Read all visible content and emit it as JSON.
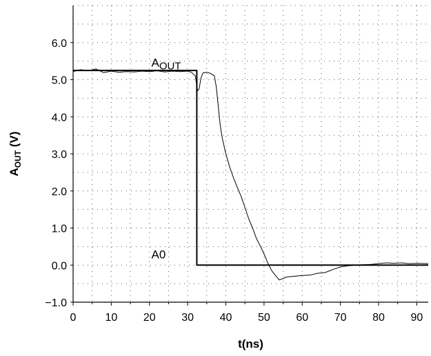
{
  "chart_data": {
    "type": "line",
    "title": "",
    "xlabel": "t(ns)",
    "ylabel": {
      "main": "A",
      "sub": "OUT",
      "unit": " (V)"
    },
    "xlim": [
      0,
      93
    ],
    "ylim": [
      -1.0,
      7.0
    ],
    "x_ticks": [
      0,
      10,
      20,
      30,
      40,
      50,
      60,
      70,
      80,
      90
    ],
    "x_tick_labels": [
      "0",
      "10",
      "20",
      "30",
      "40",
      "50",
      "60",
      "70",
      "80",
      "90"
    ],
    "y_ticks": [
      -1.0,
      0.0,
      1.0,
      2.0,
      3.0,
      4.0,
      5.0,
      6.0
    ],
    "y_tick_labels": [
      "−1.0",
      "0.0",
      "1.0",
      "2.0",
      "3.0",
      "4.0",
      "5.0",
      "6.0"
    ],
    "grid": true,
    "grid_style": "dotted",
    "annotations": [
      {
        "text": "A",
        "sub": "OUT",
        "x": 20.5,
        "y": 5.35
      },
      {
        "text": "A0",
        "x": 20.5,
        "y": 0.18
      }
    ],
    "series": [
      {
        "x": [
          0,
          5,
          10,
          15,
          20,
          25,
          30,
          32.4,
          32.4,
          40,
          50,
          60,
          70,
          80,
          93
        ],
        "y": [
          5.25,
          5.25,
          5.25,
          5.25,
          5.25,
          5.25,
          5.25,
          5.25,
          0.0,
          0.0,
          0.0,
          0.0,
          0.0,
          0.0,
          0.0
        ]
      },
      {
        "x": [
          0,
          2,
          4,
          6,
          8,
          10,
          12,
          14,
          16,
          18,
          20,
          22,
          24,
          26,
          28,
          30,
          31,
          32,
          32.6,
          33,
          33.5,
          34,
          35,
          36,
          37,
          37.5,
          38,
          38.5,
          39,
          40,
          41,
          42,
          43,
          44,
          45,
          46,
          47,
          48,
          49,
          50,
          51,
          52,
          53,
          54,
          55,
          56,
          58,
          60,
          62,
          64,
          66,
          68,
          70,
          72,
          74,
          76,
          78,
          80,
          82,
          84,
          86,
          88,
          90,
          93
        ],
        "y": [
          5.22,
          5.27,
          5.24,
          5.29,
          5.19,
          5.23,
          5.2,
          5.22,
          5.21,
          5.23,
          5.22,
          5.24,
          5.21,
          5.23,
          5.22,
          5.23,
          5.2,
          5.1,
          4.7,
          4.75,
          5.05,
          5.18,
          5.2,
          5.17,
          5.1,
          4.8,
          4.3,
          3.8,
          3.45,
          3.0,
          2.65,
          2.35,
          2.1,
          1.85,
          1.55,
          1.25,
          1.0,
          0.72,
          0.52,
          0.3,
          0.05,
          -0.15,
          -0.28,
          -0.4,
          -0.36,
          -0.32,
          -0.3,
          -0.28,
          -0.27,
          -0.22,
          -0.2,
          -0.12,
          -0.05,
          -0.02,
          0.0,
          0.01,
          0.02,
          0.04,
          0.06,
          0.05,
          0.06,
          0.04,
          0.05,
          0.04
        ]
      }
    ]
  }
}
